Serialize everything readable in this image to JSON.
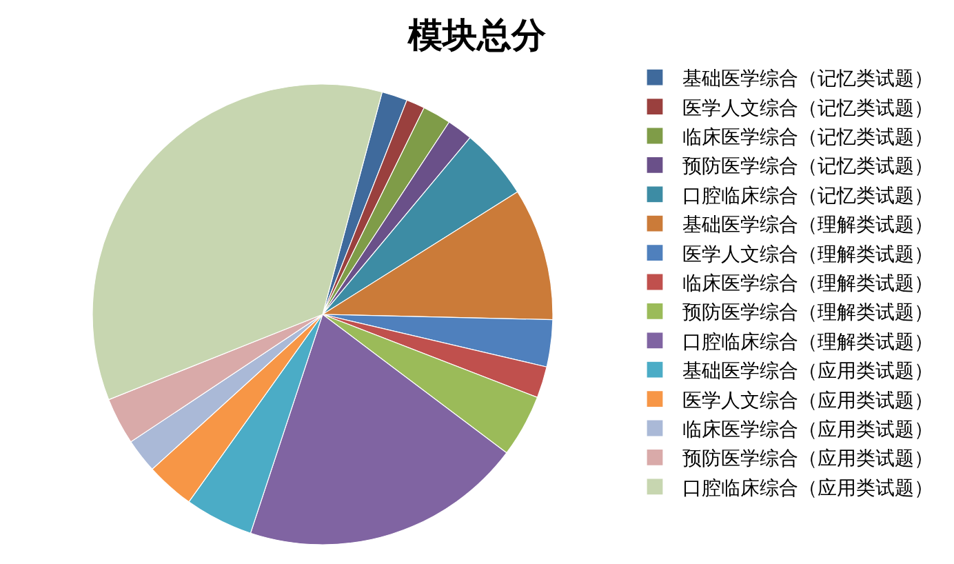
{
  "chart_data": {
    "type": "pie",
    "title": "模块总分",
    "categories": [
      "基础医学综合（记忆类试题）",
      "医学人文综合（记忆类试题）",
      "临床医学综合（记忆类试题）",
      "预防医学综合（记忆类试题）",
      "口腔临床综合（记忆类试题）",
      "基础医学综合（理解类试题）",
      "医学人文综合（理解类试题）",
      "临床医学综合（理解类试题）",
      "预防医学综合（理解类试题）",
      "口腔临床综合（理解类试题）",
      "基础医学综合（应用类试题）",
      "医学人文综合（应用类试题）",
      "临床医学综合（应用类试题）",
      "预防医学综合（应用类试题）",
      "口腔临床综合（应用类试题）"
    ],
    "values": [
      1.8,
      1.3,
      2.0,
      1.8,
      5.0,
      9.3,
      3.3,
      2.2,
      4.4,
      19.8,
      4.8,
      3.4,
      2.4,
      3.3,
      35.2
    ],
    "colors": [
      "#3f6a9c",
      "#9a403e",
      "#7f9c48",
      "#6a5089",
      "#3d8ca4",
      "#cb7b39",
      "#4f80bd",
      "#c0504d",
      "#9bbb59",
      "#8064a2",
      "#4bacc6",
      "#f79646",
      "#aab9d7",
      "#d9aaa9",
      "#c7d6b0"
    ],
    "legend": "right"
  }
}
